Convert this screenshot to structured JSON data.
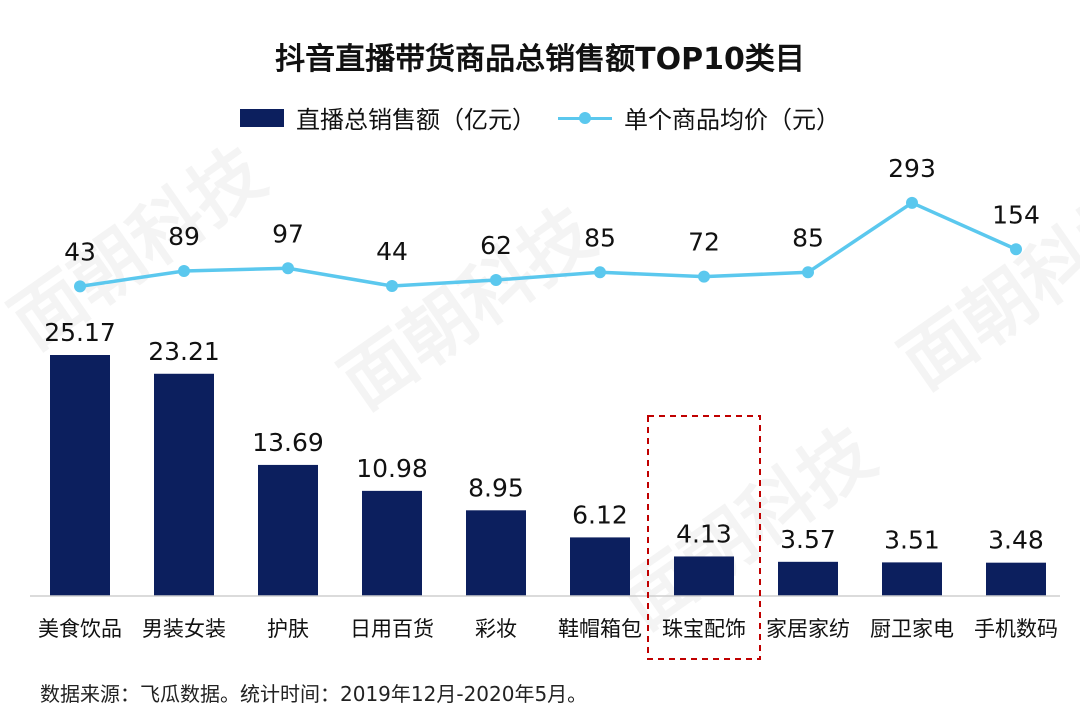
{
  "chart_data": {
    "type": "bar+line",
    "title": "抖音直播带货商品总销售额TOP10类目",
    "categories": [
      "美食饮品",
      "男装女装",
      "护肤",
      "日用百货",
      "彩妆",
      "鞋帽箱包",
      "珠宝配饰",
      "家居家纺",
      "厨卫家电",
      "手机数码"
    ],
    "bar_labels": [
      "25.17",
      "23.21",
      "13.69",
      "10.98",
      "8.95",
      "6.12",
      "4.13",
      "3.57",
      "3.51",
      "3.48"
    ],
    "line_labels": [
      "43",
      "89",
      "97",
      "44",
      "62",
      "85",
      "72",
      "85",
      "293",
      "154"
    ],
    "series": [
      {
        "name": "直播总销售额（亿元）",
        "type": "bar",
        "values": [
          25.17,
          23.21,
          13.69,
          10.98,
          8.95,
          6.12,
          4.13,
          3.57,
          3.51,
          3.48
        ],
        "color": "#0c1f5e"
      },
      {
        "name": "单个商品均价（元）",
        "type": "line",
        "values": [
          43,
          89,
          97,
          44,
          62,
          85,
          72,
          85,
          293,
          154
        ],
        "color": "#5bc8ee"
      }
    ],
    "highlighted_category": "珠宝配饰",
    "highlight_color": "#c00000",
    "legend_position": "top-center",
    "grid": false,
    "axes_visible": false
  },
  "footer": {
    "source_text": "数据来源：飞瓜数据。统计时间：2019年12月-2020年5月。"
  },
  "watermark": {
    "text": "面朝科技"
  }
}
